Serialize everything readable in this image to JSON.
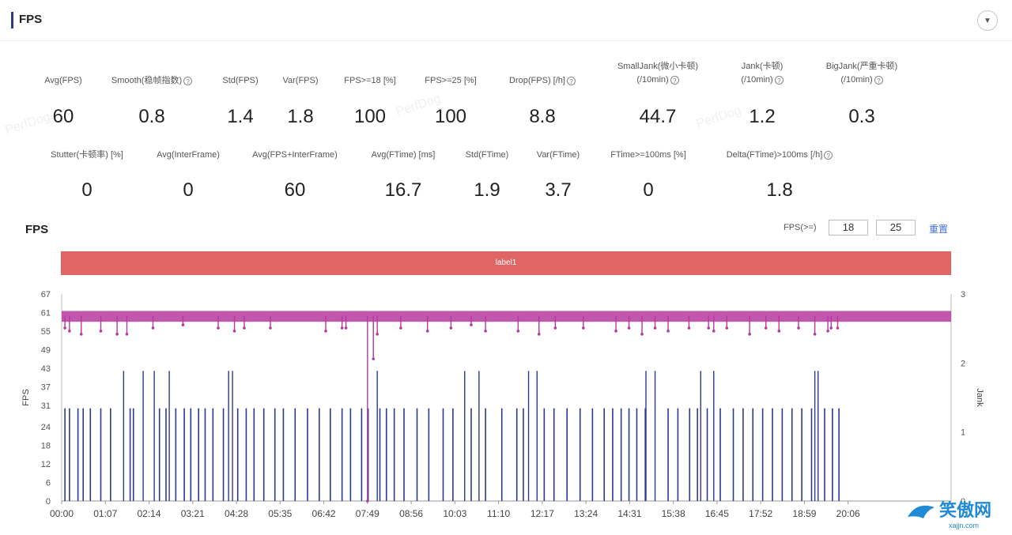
{
  "header": {
    "title": "FPS"
  },
  "metrics_row1": [
    {
      "label": "Avg(FPS)",
      "value": "60",
      "help": false
    },
    {
      "label": "Smooth(稳帧指数)",
      "value": "0.8",
      "help": true
    },
    {
      "label": "Std(FPS)",
      "value": "1.4",
      "help": false
    },
    {
      "label": "Var(FPS)",
      "value": "1.8",
      "help": false
    },
    {
      "label": "FPS>=18 [%]",
      "value": "100",
      "help": false
    },
    {
      "label": "FPS>=25 [%]",
      "value": "100",
      "help": false
    },
    {
      "label": "Drop(FPS) [/h]",
      "value": "8.8",
      "help": true
    },
    {
      "label": "SmallJank(微小卡顿)",
      "label2": "(/10min)",
      "value": "44.7",
      "help": true
    },
    {
      "label": "Jank(卡顿)",
      "label2": "(/10min)",
      "value": "1.2",
      "help": true
    },
    {
      "label": "BigJank(严重卡顿)",
      "label2": "(/10min)",
      "value": "0.3",
      "help": true
    }
  ],
  "metrics_row2": [
    {
      "label": "Stutter(卡顿率) [%]",
      "value": "0",
      "help": false
    },
    {
      "label": "Avg(InterFrame)",
      "value": "0",
      "help": false
    },
    {
      "label": "Avg(FPS+InterFrame)",
      "value": "60",
      "help": false
    },
    {
      "label": "Avg(FTime) [ms]",
      "value": "16.7",
      "help": false
    },
    {
      "label": "Std(FTime)",
      "value": "1.9",
      "help": false
    },
    {
      "label": "Var(FTime)",
      "value": "3.7",
      "help": false
    },
    {
      "label": "FTime>=100ms [%]",
      "value": "0",
      "help": false
    },
    {
      "label": "Delta(FTime)>100ms [/h]",
      "value": "1.8",
      "help": true
    }
  ],
  "chart_section": {
    "title": "FPS",
    "threshold_label": "FPS(>=)",
    "threshold_low": "18",
    "threshold_high": "25",
    "reset_label": "重置",
    "band_label": "label1"
  },
  "watermark": "PerfDog",
  "logo_text": "笑傲网",
  "logo_sub": "xajjn.com",
  "colors": {
    "fps_line": "#b5399e",
    "jank_line": "#2b3990",
    "band": "#e06666",
    "accent": "#3f6fd9"
  },
  "chart_data": {
    "type": "line",
    "ylabel": "FPS",
    "y2label": "Jank",
    "ylim": [
      0,
      67
    ],
    "yticks": [
      0,
      6,
      12,
      18,
      24,
      31,
      37,
      43,
      49,
      55,
      61,
      67
    ],
    "y2lim": [
      0,
      3
    ],
    "y2ticks": [
      0,
      1,
      2,
      3
    ],
    "xticks": [
      "00:00",
      "01:07",
      "02:14",
      "03:21",
      "04:28",
      "05:35",
      "06:42",
      "07:49",
      "08:56",
      "10:03",
      "11:10",
      "12:17",
      "13:24",
      "14:31",
      "15:38",
      "16:45",
      "17:52",
      "18:59",
      "20:06"
    ],
    "x_minutes_range": [
      0,
      1364
    ],
    "series": [
      {
        "name": "FPS",
        "baseline": 60,
        "dips": [
          [
            5,
            56
          ],
          [
            12,
            55
          ],
          [
            30,
            54
          ],
          [
            60,
            55
          ],
          [
            85,
            54
          ],
          [
            100,
            54
          ],
          [
            140,
            56
          ],
          [
            186,
            57
          ],
          [
            240,
            56
          ],
          [
            265,
            55
          ],
          [
            280,
            56
          ],
          [
            320,
            56
          ],
          [
            405,
            55
          ],
          [
            430,
            56
          ],
          [
            436,
            56
          ],
          [
            469,
            0
          ],
          [
            478,
            46
          ],
          [
            484,
            54
          ],
          [
            520,
            56
          ],
          [
            561,
            55
          ],
          [
            597,
            56
          ],
          [
            628,
            57
          ],
          [
            650,
            55
          ],
          [
            700,
            55
          ],
          [
            732,
            54
          ],
          [
            757,
            56
          ],
          [
            800,
            56
          ],
          [
            850,
            55
          ],
          [
            870,
            56
          ],
          [
            890,
            54
          ],
          [
            910,
            56
          ],
          [
            930,
            55
          ],
          [
            962,
            56
          ],
          [
            992,
            56
          ],
          [
            1000,
            55
          ],
          [
            1020,
            56
          ],
          [
            1055,
            54
          ],
          [
            1080,
            56
          ],
          [
            1100,
            55
          ],
          [
            1130,
            56
          ],
          [
            1155,
            54
          ],
          [
            1175,
            55
          ],
          [
            1180,
            56
          ],
          [
            1190,
            56
          ]
        ]
      },
      {
        "name": "Jank",
        "spikes2": [
          [
            95,
            2
          ],
          [
            125,
            2
          ],
          [
            142,
            2
          ],
          [
            165,
            2
          ],
          [
            256,
            2
          ],
          [
            262,
            2
          ],
          [
            484,
            2
          ],
          [
            618,
            2
          ],
          [
            640,
            2
          ],
          [
            716,
            2
          ],
          [
            729,
            2
          ],
          [
            896,
            2
          ],
          [
            910,
            2
          ],
          [
            980,
            2
          ],
          [
            1000,
            2
          ],
          [
            1155,
            2
          ],
          [
            1160,
            2
          ]
        ],
        "spikes1": [
          [
            5,
            1
          ],
          [
            12,
            1
          ],
          [
            25,
            1
          ],
          [
            33,
            1
          ],
          [
            44,
            1
          ],
          [
            60,
            1
          ],
          [
            75,
            1
          ],
          [
            105,
            1
          ],
          [
            110,
            1
          ],
          [
            150,
            1
          ],
          [
            160,
            1
          ],
          [
            175,
            1
          ],
          [
            188,
            1
          ],
          [
            198,
            1
          ],
          [
            210,
            1
          ],
          [
            220,
            1
          ],
          [
            232,
            1
          ],
          [
            248,
            1
          ],
          [
            270,
            1
          ],
          [
            283,
            1
          ],
          [
            295,
            1
          ],
          [
            310,
            1
          ],
          [
            327,
            1
          ],
          [
            340,
            1
          ],
          [
            358,
            1
          ],
          [
            377,
            1
          ],
          [
            395,
            1
          ],
          [
            412,
            1
          ],
          [
            430,
            1
          ],
          [
            443,
            1
          ],
          [
            460,
            1
          ],
          [
            470,
            1
          ],
          [
            488,
            1
          ],
          [
            498,
            1
          ],
          [
            510,
            1
          ],
          [
            525,
            1
          ],
          [
            545,
            1
          ],
          [
            563,
            1
          ],
          [
            585,
            1
          ],
          [
            600,
            1
          ],
          [
            628,
            1
          ],
          [
            650,
            1
          ],
          [
            675,
            1
          ],
          [
            698,
            1
          ],
          [
            708,
            1
          ],
          [
            740,
            1
          ],
          [
            755,
            1
          ],
          [
            775,
            1
          ],
          [
            795,
            1
          ],
          [
            814,
            1
          ],
          [
            832,
            1
          ],
          [
            845,
            1
          ],
          [
            858,
            1
          ],
          [
            870,
            1
          ],
          [
            882,
            1
          ],
          [
            895,
            1
          ],
          [
            930,
            1
          ],
          [
            945,
            1
          ],
          [
            963,
            1
          ],
          [
            975,
            1
          ],
          [
            990,
            1
          ],
          [
            1010,
            1
          ],
          [
            1030,
            1
          ],
          [
            1045,
            1
          ],
          [
            1060,
            1
          ],
          [
            1075,
            1
          ],
          [
            1090,
            1
          ],
          [
            1105,
            1
          ],
          [
            1120,
            1
          ],
          [
            1135,
            1
          ],
          [
            1150,
            1
          ],
          [
            1170,
            1
          ],
          [
            1182,
            1
          ],
          [
            1192,
            1
          ]
        ]
      }
    ]
  }
}
